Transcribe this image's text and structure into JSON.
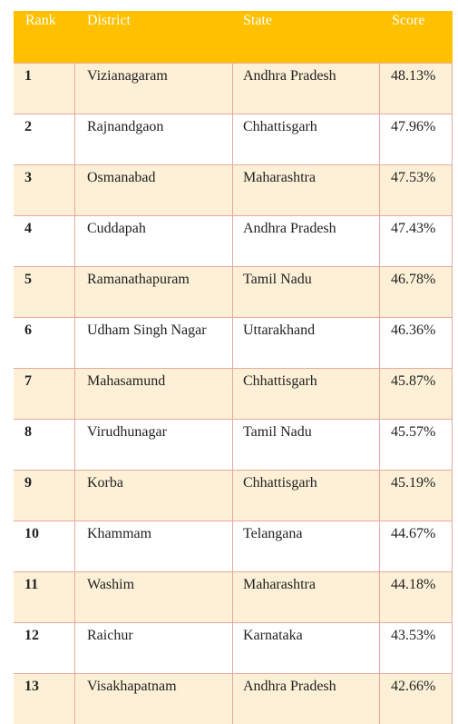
{
  "header": {
    "rank": "Rank",
    "district": "District",
    "state": "State",
    "score": "Score"
  },
  "colors": {
    "header_bg": "#ffc000",
    "header_text": "#ffffff",
    "shaded_row": "#fdf0d6",
    "border": "#e8a9a0"
  },
  "rows": [
    {
      "rank": "1",
      "district": "Vizianagaram",
      "state": "Andhra Pradesh",
      "score": "48.13%"
    },
    {
      "rank": "2",
      "district": "Rajnandgaon",
      "state": "Chhattisgarh",
      "score": "47.96%"
    },
    {
      "rank": "3",
      "district": "Osmanabad",
      "state": "Maharashtra",
      "score": "47.53%"
    },
    {
      "rank": "4",
      "district": "Cuddapah",
      "state": "Andhra Pradesh",
      "score": "47.43%"
    },
    {
      "rank": "5",
      "district": "Ramanathapuram",
      "state": "Tamil Nadu",
      "score": "46.78%"
    },
    {
      "rank": "6",
      "district": "Udham Singh Nagar",
      "state": "Uttarakhand",
      "score": "46.36%"
    },
    {
      "rank": "7",
      "district": "Mahasamund",
      "state": "Chhattisgarh",
      "score": "45.87%"
    },
    {
      "rank": "8",
      "district": "Virudhunagar",
      "state": "Tamil Nadu",
      "score": "45.57%"
    },
    {
      "rank": "9",
      "district": "Korba",
      "state": "Chhattisgarh",
      "score": "45.19%"
    },
    {
      "rank": "10",
      "district": "Khammam",
      "state": "Telangana",
      "score": "44.67%"
    },
    {
      "rank": "11",
      "district": "Washim",
      "state": "Maharashtra",
      "score": "44.18%"
    },
    {
      "rank": "12",
      "district": "Raichur",
      "state": "Karnataka",
      "score": "43.53%"
    },
    {
      "rank": "13",
      "district": "Visakhapatnam",
      "state": "Andhra Pradesh",
      "score": "42.66%"
    }
  ]
}
